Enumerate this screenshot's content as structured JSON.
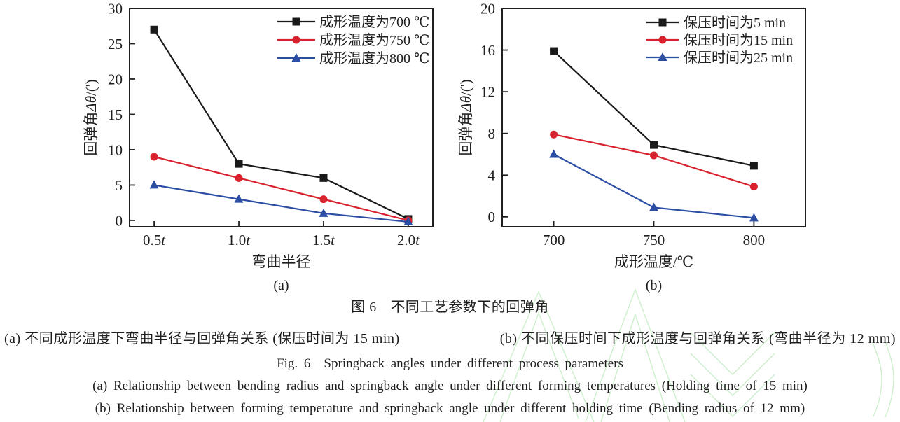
{
  "colors": {
    "ink": "#1f1f1f",
    "series_black": "#1a1a1a",
    "series_red": "#d8222e",
    "series_blue": "#2b4da4",
    "watermark_green": "#8fdc8f"
  },
  "chart_data": [
    {
      "id": "chart-a",
      "type": "line",
      "title": "",
      "xlabel": "弯曲半径",
      "ylabel": "回弹角Δθ/(')",
      "sublabel": "(a)",
      "categories": [
        "0.5t",
        "1.0t",
        "1.5t",
        "2.0t"
      ],
      "ylim": [
        -0.9,
        30
      ],
      "yticks": [
        0,
        5,
        10,
        15,
        20,
        25,
        30
      ],
      "grid": false,
      "legend_position": "top-right-inside",
      "series": [
        {
          "name": "成形温度为700 ℃",
          "marker": "square",
          "color": "#1a1a1a",
          "values": [
            27,
            8,
            6,
            0.2
          ]
        },
        {
          "name": "成形温度为750 ℃",
          "marker": "circle",
          "color": "#d8222e",
          "values": [
            9,
            6,
            3,
            0
          ]
        },
        {
          "name": "成形温度为800 ℃",
          "marker": "triangle",
          "color": "#2b4da4",
          "values": [
            5,
            3,
            1,
            -0.2
          ]
        }
      ]
    },
    {
      "id": "chart-b",
      "type": "line",
      "title": "",
      "xlabel": "成形温度/℃",
      "ylabel": "回弹角Δθ/(')",
      "sublabel": "(b)",
      "categories": [
        "700",
        "750",
        "800"
      ],
      "ylim": [
        -0.95,
        20
      ],
      "yticks": [
        0,
        4,
        8,
        12,
        16,
        20
      ],
      "grid": false,
      "legend_position": "top-right-inside",
      "series": [
        {
          "name": "保压时间为5 min",
          "marker": "square",
          "color": "#1a1a1a",
          "values": [
            15.9,
            6.9,
            4.9
          ]
        },
        {
          "name": "保压时间为15 min",
          "marker": "circle",
          "color": "#d8222e",
          "values": [
            7.9,
            5.9,
            2.9
          ]
        },
        {
          "name": "保压时间为25 min",
          "marker": "triangle",
          "color": "#2b4da4",
          "values": [
            6,
            0.9,
            -0.1
          ]
        }
      ]
    }
  ],
  "caption": {
    "title_cn": "图 6　不同工艺参数下的回弹角",
    "sub_cn_a": "(a) 不同成形温度下弯曲半径与回弹角关系 (保压时间为 15 min)",
    "sub_cn_b": "(b) 不同保压时间下成形温度与回弹角关系 (弯曲半径为 12 mm)",
    "title_en": "Fig. 6　Springback angles under different process parameters",
    "sub_en_a": "(a) Relationship between bending radius and springback angle under different forming temperatures (Holding time of 15 min)",
    "sub_en_b": "(b) Relationship between forming temperature and springback angle under different holding time (Bending radius of 12 mm)"
  }
}
